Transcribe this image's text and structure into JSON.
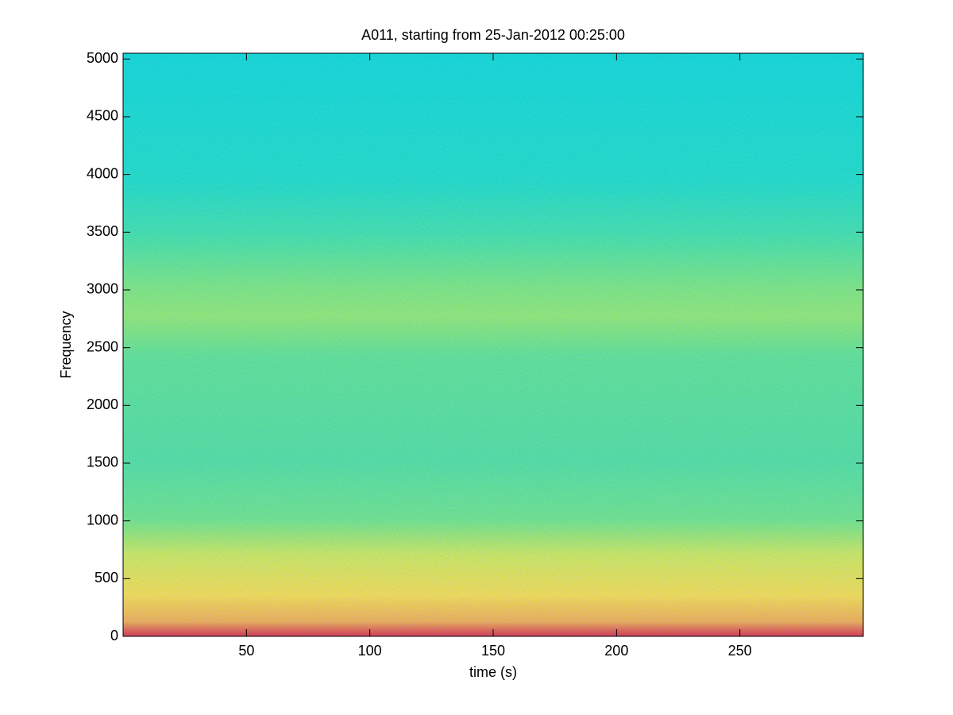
{
  "chart_data": {
    "type": "spectrogram",
    "title": "A011, starting from 25-Jan-2012 00:25:00",
    "x_label": "time (s)",
    "y_label": "Frequency",
    "xlim": [
      0,
      300
    ],
    "ylim": [
      0,
      5050
    ],
    "xticks": [
      50,
      100,
      150,
      200,
      250
    ],
    "yticks": [
      0,
      500,
      1000,
      1500,
      2000,
      2500,
      3000,
      3500,
      4000,
      4500,
      5000
    ]
  }
}
